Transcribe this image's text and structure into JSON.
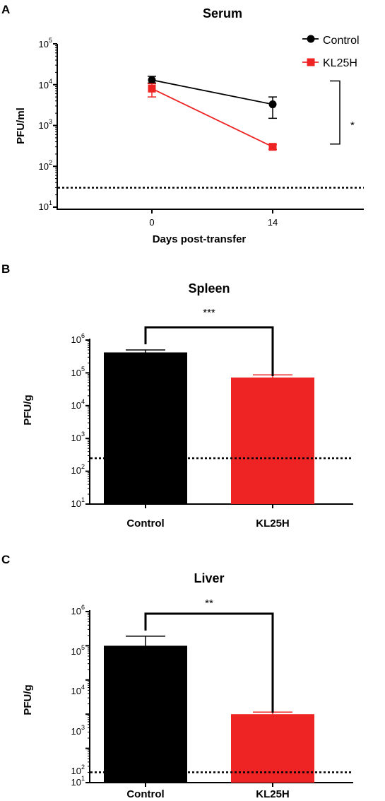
{
  "colors": {
    "control": "#000000",
    "kl25h": "#ee2424",
    "axis": "#000000"
  },
  "chart_data": [
    {
      "panel": "A",
      "type": "line",
      "title": "Serum",
      "xlabel": "Days post-transfer",
      "ylabel": "PFU/ml",
      "yscale": "log",
      "ylim": [
        10,
        100000
      ],
      "yticks": [
        {
          "base": "10",
          "exp": "1"
        },
        {
          "base": "10",
          "exp": "2"
        },
        {
          "base": "10",
          "exp": "3"
        },
        {
          "base": "10",
          "exp": "4"
        },
        {
          "base": "10",
          "exp": "5"
        }
      ],
      "x": [
        "0",
        "14"
      ],
      "series": [
        {
          "name": "Control",
          "values": [
            13000,
            3300
          ],
          "err_low": [
            11000,
            1500
          ],
          "err_high": [
            16000,
            5000
          ],
          "marker": "circle"
        },
        {
          "name": "KL25H",
          "values": [
            8000,
            300
          ],
          "err_low": [
            5000,
            260
          ],
          "err_high": [
            10500,
            340
          ],
          "marker": "square"
        }
      ],
      "detection_limit": 30,
      "significance": "*",
      "legend": "top-right"
    },
    {
      "panel": "B",
      "type": "bar",
      "title": "Spleen",
      "ylabel": "PFU/g",
      "yscale": "log",
      "ylim": [
        10,
        1000000
      ],
      "yticks": [
        {
          "base": "10",
          "exp": "1"
        },
        {
          "base": "10",
          "exp": "2"
        },
        {
          "base": "10",
          "exp": "3"
        },
        {
          "base": "10",
          "exp": "4"
        },
        {
          "base": "10",
          "exp": "5"
        },
        {
          "base": "10",
          "exp": "6"
        }
      ],
      "categories": [
        "Control",
        "KL25H"
      ],
      "values": [
        420000,
        72000
      ],
      "err_high": [
        500000,
        87000
      ],
      "detection_limit": 250,
      "significance": "***"
    },
    {
      "panel": "C",
      "type": "bar",
      "title": "Liver",
      "ylabel": "PFU/g",
      "yscale": "log",
      "ylim": [
        10,
        1000000
      ],
      "yticks": [
        {
          "base": "10",
          "exp": "1"
        },
        {
          "base": "10",
          "exp": "2"
        },
        {
          "base": "10",
          "exp": "3"
        },
        {
          "base": "10",
          "exp": "4"
        },
        {
          "base": "10",
          "exp": "5"
        },
        {
          "base": "10",
          "exp": "6"
        }
      ],
      "categories": [
        "Control",
        "KL25H"
      ],
      "values": [
        100000,
        1000
      ],
      "err_high": [
        190000,
        1150
      ],
      "detection_limit": 20,
      "significance": "**"
    }
  ]
}
